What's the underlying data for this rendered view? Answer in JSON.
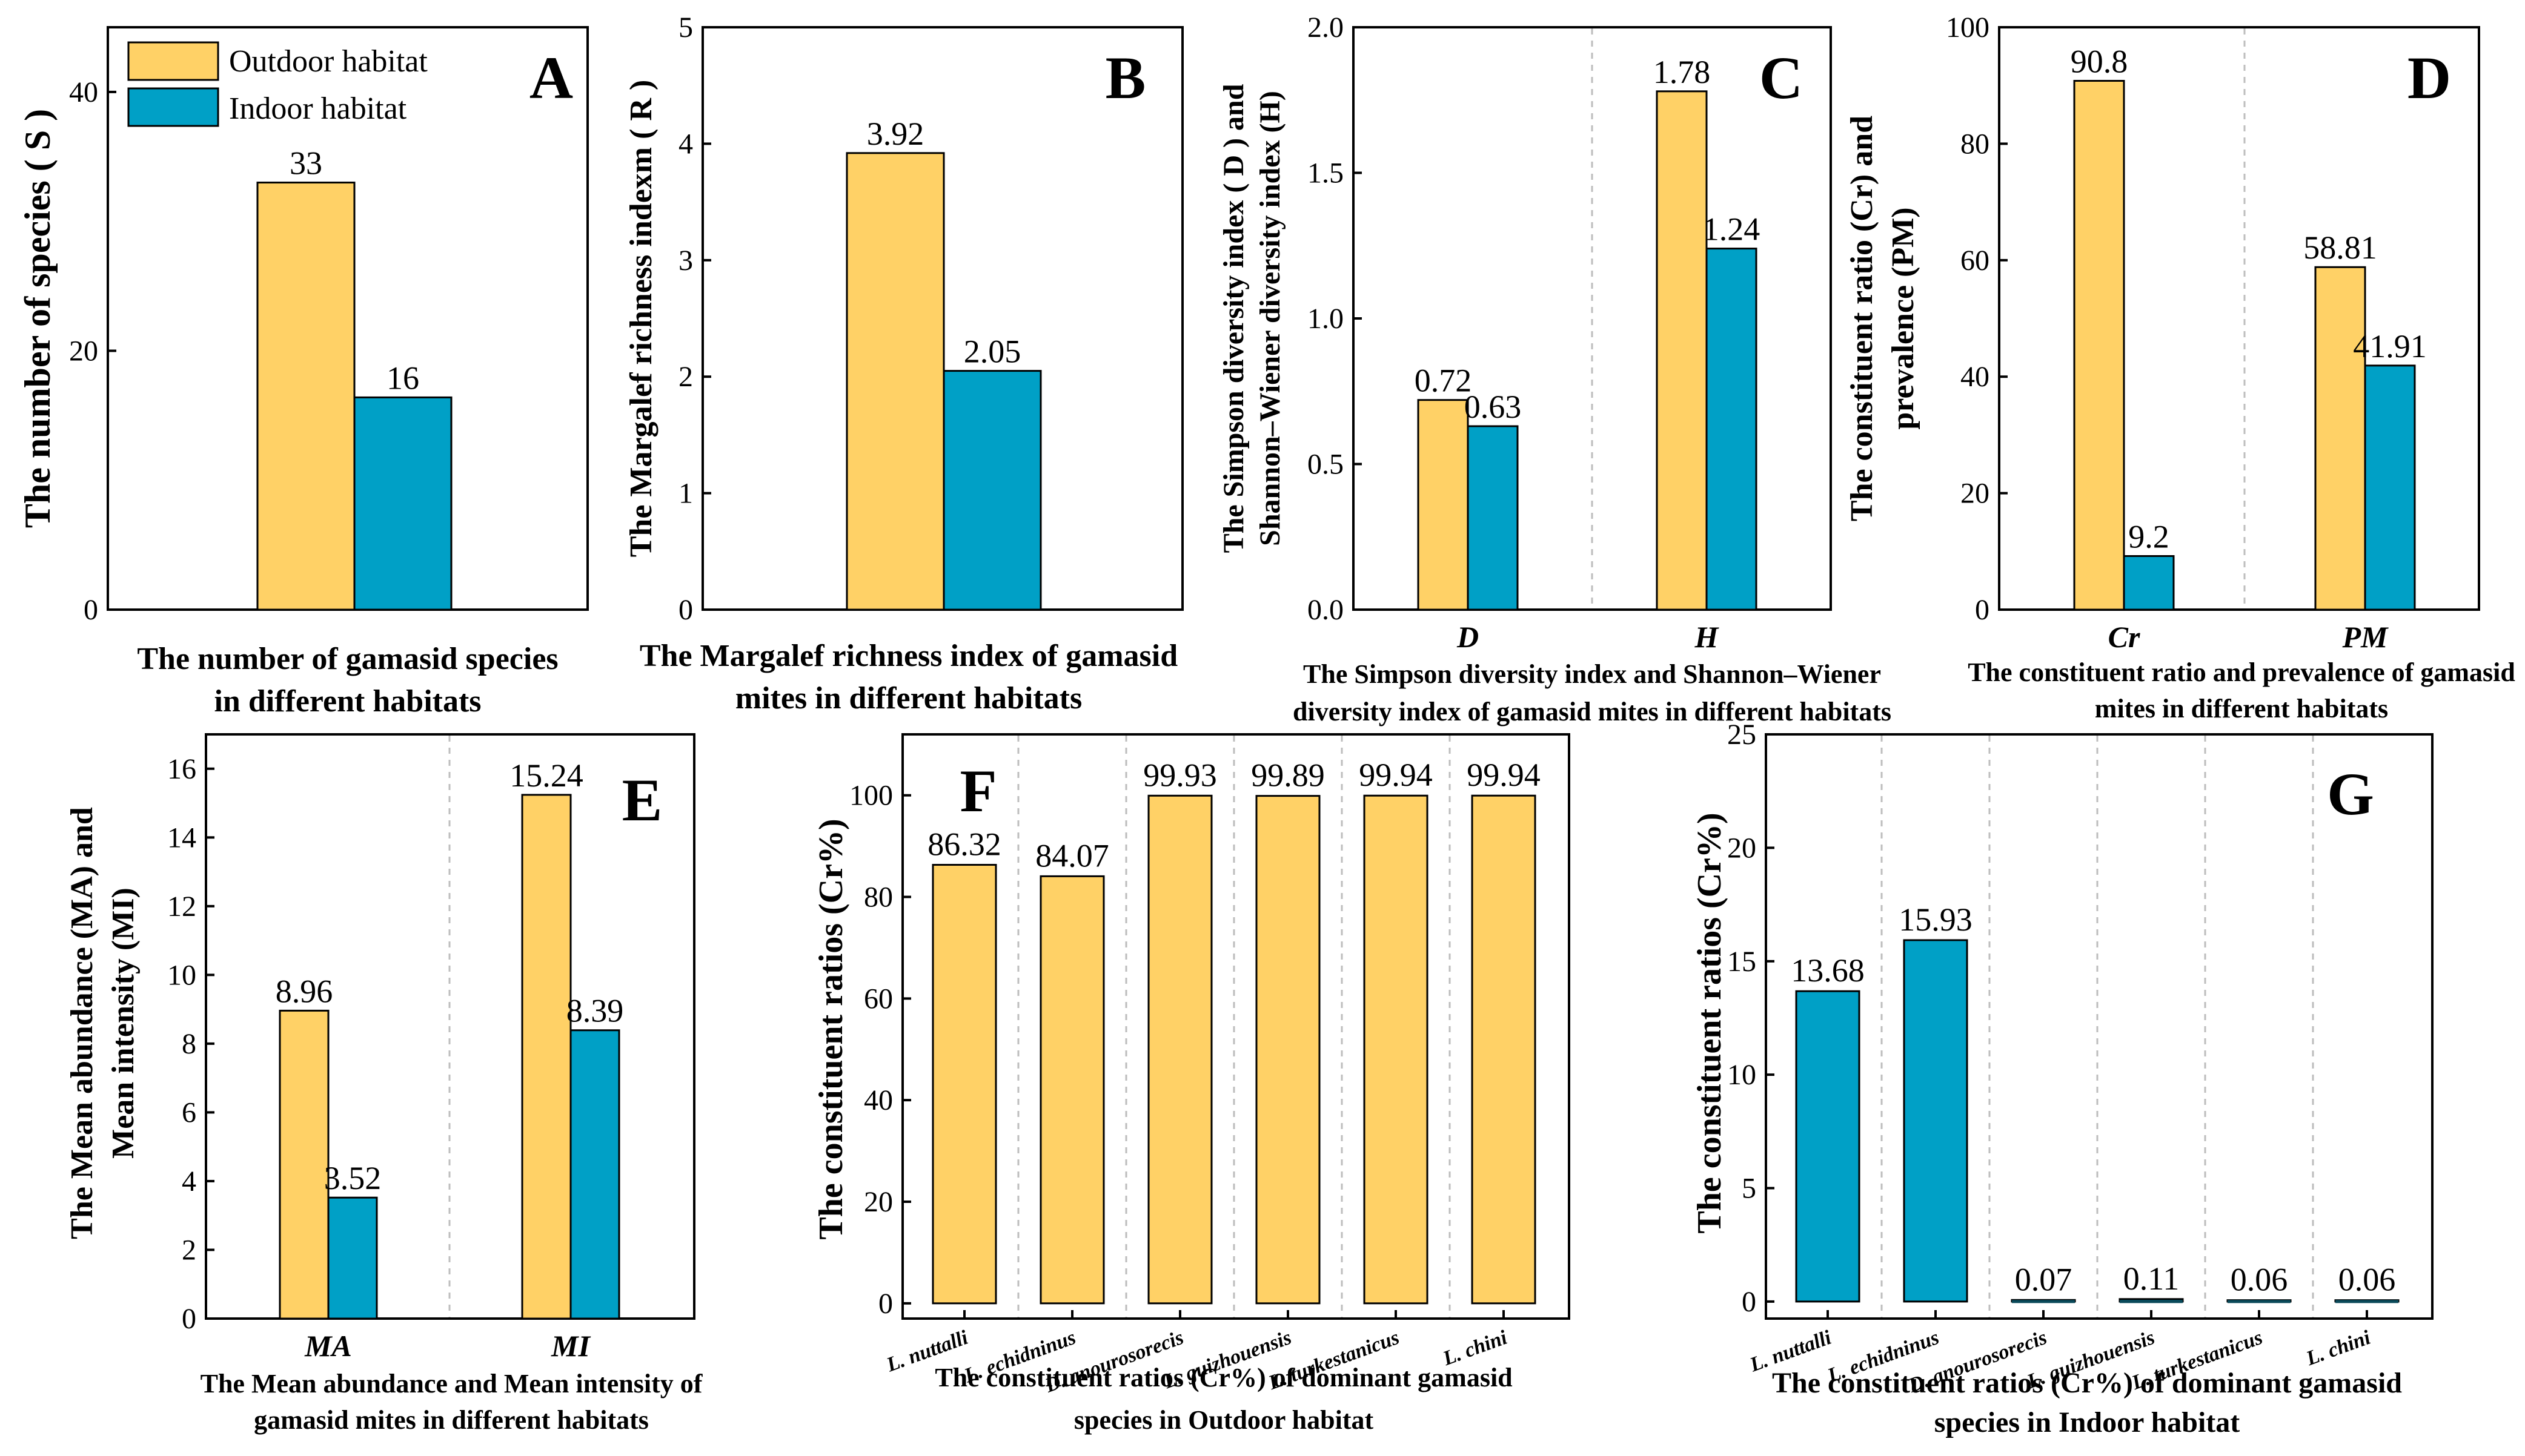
{
  "colors": {
    "outdoor": "#FFD166",
    "indoor": "#00A0C6",
    "stroke": "#000000"
  },
  "legend": [
    {
      "label": "Outdoor habitat",
      "color": "#FFD166"
    },
    {
      "label": "Indoor habitat",
      "color": "#00A0C6"
    }
  ],
  "chart_data": [
    {
      "id": "A",
      "type": "bar",
      "panel_letter": "A",
      "ylabel": "The number of species ( S )",
      "xlabel_lines": [
        "The number of gamasid species",
        "in different habitats"
      ],
      "ylim": [
        0,
        45
      ],
      "yticks": [
        0,
        20,
        40
      ],
      "groups": [
        ""
      ],
      "series": [
        {
          "name": "Outdoor habitat",
          "values": [
            33
          ],
          "labels": [
            "33"
          ]
        },
        {
          "name": "Indoor habitat",
          "values": [
            16.4
          ],
          "labels": [
            "16"
          ]
        }
      ]
    },
    {
      "id": "B",
      "type": "bar",
      "panel_letter": "B",
      "ylabel": "The Margalef richness indexm ( R )",
      "xlabel_lines": [
        "The Margalef richness index of gamasid",
        "mites in different habitats"
      ],
      "ylim": [
        0,
        5
      ],
      "yticks": [
        0,
        1,
        2,
        3,
        4,
        5
      ],
      "groups": [
        ""
      ],
      "series": [
        {
          "name": "Outdoor habitat",
          "values": [
            3.92
          ],
          "labels": [
            "3.92"
          ]
        },
        {
          "name": "Indoor habitat",
          "values": [
            2.05
          ],
          "labels": [
            "2.05"
          ]
        }
      ]
    },
    {
      "id": "C",
      "type": "bar",
      "panel_letter": "C",
      "ylabel_lines": [
        "The Simpson diversity index ( D ) and",
        "Shannon–Wiener diversity index (H)"
      ],
      "xlabel_lines": [
        "The Simpson diversity index and Shannon–Wiener",
        "diversity index of gamasid mites in different habitats"
      ],
      "ylim": [
        0,
        2.0
      ],
      "yticks": [
        0.0,
        0.5,
        1.0,
        1.5,
        2.0
      ],
      "ytick_labels": [
        "0.0",
        "0.5",
        "1.0",
        "1.5",
        "2.0"
      ],
      "groups": [
        "D",
        "H"
      ],
      "series": [
        {
          "name": "Outdoor habitat",
          "values": [
            0.72,
            1.78
          ],
          "labels": [
            "0.72",
            "1.78"
          ]
        },
        {
          "name": "Indoor habitat",
          "values": [
            0.63,
            1.24
          ],
          "labels": [
            "0.63",
            "1.24"
          ]
        }
      ]
    },
    {
      "id": "D",
      "type": "bar",
      "panel_letter": "D",
      "ylabel_lines": [
        "The constituent ratio (Cr) and",
        "prevalence (PM)"
      ],
      "xlabel_lines": [
        "The constituent ratio and prevalence of gamasid",
        "mites in different habitats"
      ],
      "ylim": [
        0,
        100
      ],
      "yticks": [
        0,
        20,
        40,
        60,
        80,
        100
      ],
      "groups": [
        "Cr",
        "PM"
      ],
      "series": [
        {
          "name": "Outdoor habitat",
          "values": [
            90.8,
            58.81
          ],
          "labels": [
            "90.8",
            "58.81"
          ]
        },
        {
          "name": "Indoor habitat",
          "values": [
            9.2,
            41.91
          ],
          "labels": [
            "9.2",
            "41.91"
          ]
        }
      ]
    },
    {
      "id": "E",
      "type": "bar",
      "panel_letter": "E",
      "ylabel_lines": [
        "The Mean abundance (MA) and",
        "Mean intensity (MI)"
      ],
      "xlabel_lines": [
        "The Mean abundance and Mean intensity of",
        "gamasid mites in different habitats"
      ],
      "ylim": [
        0,
        17
      ],
      "yticks": [
        0,
        2,
        4,
        6,
        8,
        10,
        12,
        14,
        16
      ],
      "groups": [
        "MA",
        "MI"
      ],
      "series": [
        {
          "name": "Outdoor habitat",
          "values": [
            8.96,
            15.24
          ],
          "labels": [
            "8.96",
            "15.24"
          ]
        },
        {
          "name": "Indoor habitat",
          "values": [
            3.52,
            8.39
          ],
          "labels": [
            "3.52",
            "8.39"
          ]
        }
      ]
    },
    {
      "id": "F",
      "type": "bar",
      "panel_letter": "F",
      "ylabel": "The constituent ratios (Cr%)",
      "xlabel_lines": [
        "The constituent ratios (Cr%) of dominant gamasid",
        "species in Outdoor habitat"
      ],
      "ylim": [
        -3,
        112
      ],
      "yticks": [
        0,
        20,
        40,
        60,
        80,
        100
      ],
      "categories": [
        "L. nuttalli",
        "L. echidninus",
        "D. anourosorecis",
        "L. guizhouensis",
        "L. turkestanicus",
        "L. chini"
      ],
      "series": [
        {
          "name": "Outdoor habitat",
          "values": [
            86.32,
            84.07,
            99.93,
            99.89,
            99.94,
            99.94
          ],
          "labels": [
            "86.32",
            "84.07",
            "99.93",
            "99.89",
            "99.94",
            "99.94"
          ]
        }
      ]
    },
    {
      "id": "G",
      "type": "bar",
      "panel_letter": "G",
      "ylabel": "The constituent ratios (Cr%)",
      "xlabel_lines": [
        "The constituent ratios (Cr%) of dominant gamasid",
        "species in Indoor habitat"
      ],
      "ylim": [
        -0.75,
        25
      ],
      "yticks": [
        0,
        5,
        10,
        15,
        20,
        25
      ],
      "categories": [
        "L. nuttalli",
        "L. echidninus",
        "D. anourosorecis",
        "L. guizhouensis",
        "L. turkestanicus",
        "L. chini"
      ],
      "series": [
        {
          "name": "Indoor habitat",
          "values": [
            13.68,
            15.93,
            0.07,
            0.11,
            0.06,
            0.06
          ],
          "labels": [
            "13.68",
            "15.93",
            "0.07",
            "0.11",
            "0.06",
            "0.06"
          ]
        }
      ]
    }
  ]
}
